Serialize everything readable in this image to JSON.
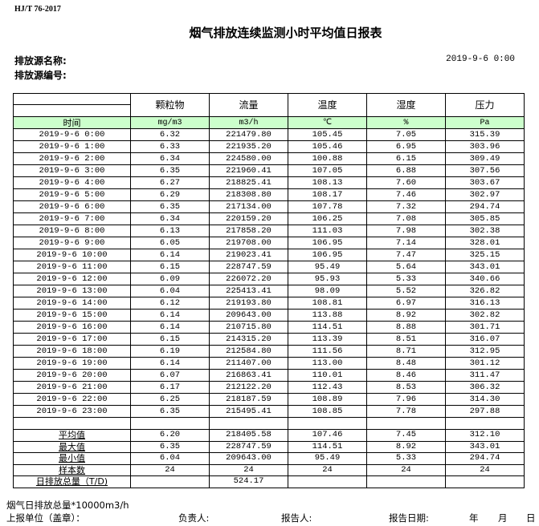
{
  "standard": "HJ/T  76-2017",
  "title": "烟气排放连续监测小时平均值日报表",
  "source_name_label": "排放源名称:",
  "source_no_label": "排放源编号:",
  "report_date": "2019-9-6  0:00",
  "table": {
    "headers": [
      "颗粒物",
      "流量",
      "温度",
      "湿度",
      "压力"
    ],
    "units": [
      "时间",
      "mg/m3",
      "m3/h",
      "℃",
      "%",
      "Pa"
    ],
    "rows": [
      [
        "2019-9-6 0:00",
        "6.32",
        "221479.80",
        "105.45",
        "7.05",
        "315.39"
      ],
      [
        "2019-9-6 1:00",
        "6.33",
        "221935.20",
        "105.46",
        "6.95",
        "303.96"
      ],
      [
        "2019-9-6 2:00",
        "6.34",
        "224580.00",
        "100.88",
        "6.15",
        "309.49"
      ],
      [
        "2019-9-6 3:00",
        "6.35",
        "221960.41",
        "107.05",
        "6.88",
        "307.56"
      ],
      [
        "2019-9-6 4:00",
        "6.27",
        "218825.41",
        "108.13",
        "7.60",
        "303.67"
      ],
      [
        "2019-9-6 5:00",
        "6.29",
        "218308.80",
        "108.17",
        "7.46",
        "302.97"
      ],
      [
        "2019-9-6 6:00",
        "6.35",
        "217134.00",
        "107.78",
        "7.32",
        "294.74"
      ],
      [
        "2019-9-6 7:00",
        "6.34",
        "220159.20",
        "106.25",
        "7.08",
        "305.85"
      ],
      [
        "2019-9-6 8:00",
        "6.13",
        "217858.20",
        "111.03",
        "7.98",
        "302.38"
      ],
      [
        "2019-9-6 9:00",
        "6.05",
        "219708.00",
        "106.95",
        "7.14",
        "328.01"
      ],
      [
        "2019-9-6 10:00",
        "6.14",
        "219023.41",
        "106.95",
        "7.47",
        "325.15"
      ],
      [
        "2019-9-6 11:00",
        "6.15",
        "228747.59",
        "95.49",
        "5.64",
        "343.01"
      ],
      [
        "2019-9-6 12:00",
        "6.09",
        "226072.20",
        "95.93",
        "5.33",
        "340.66"
      ],
      [
        "2019-9-6 13:00",
        "6.04",
        "225413.41",
        "98.09",
        "5.52",
        "326.82"
      ],
      [
        "2019-9-6 14:00",
        "6.12",
        "219193.80",
        "108.81",
        "6.97",
        "316.13"
      ],
      [
        "2019-9-6 15:00",
        "6.14",
        "209643.00",
        "113.88",
        "8.92",
        "302.82"
      ],
      [
        "2019-9-6 16:00",
        "6.14",
        "210715.80",
        "114.51",
        "8.88",
        "301.71"
      ],
      [
        "2019-9-6 17:00",
        "6.15",
        "214315.20",
        "113.39",
        "8.51",
        "316.07"
      ],
      [
        "2019-9-6 18:00",
        "6.19",
        "212584.80",
        "111.56",
        "8.71",
        "312.95"
      ],
      [
        "2019-9-6 19:00",
        "6.14",
        "211407.00",
        "113.00",
        "8.48",
        "301.12"
      ],
      [
        "2019-9-6 20:00",
        "6.07",
        "216863.41",
        "110.01",
        "8.46",
        "311.47"
      ],
      [
        "2019-9-6 21:00",
        "6.17",
        "212122.20",
        "112.43",
        "8.53",
        "306.32"
      ],
      [
        "2019-9-6 22:00",
        "6.25",
        "218187.59",
        "108.89",
        "7.96",
        "314.30"
      ],
      [
        "2019-9-6 23:00",
        "6.35",
        "215495.41",
        "108.85",
        "7.78",
        "297.88"
      ]
    ],
    "summary": [
      [
        "平均值",
        "6.20",
        "218405.58",
        "107.46",
        "7.45",
        "312.10"
      ],
      [
        "最大值",
        "6.35",
        "228747.59",
        "114.51",
        "8.92",
        "343.01"
      ],
      [
        "最小值",
        "6.04",
        "209643.00",
        "95.49",
        "5.33",
        "294.74"
      ],
      [
        "样本数",
        "24",
        "24",
        "24",
        "24",
        "24"
      ],
      [
        "日排放总量（T/D)",
        "",
        "524.17",
        "",
        "",
        ""
      ]
    ],
    "units_row_color": "#ccffcc"
  },
  "footer": {
    "note": "烟气日排放总量*10000m3/h",
    "unit_label": "上报单位（盖章）：",
    "responsible_label": "负责人:",
    "reporter_label": "报告人:",
    "report_date_label": "报告日期:",
    "year": "年",
    "month": "月",
    "day": "日"
  }
}
